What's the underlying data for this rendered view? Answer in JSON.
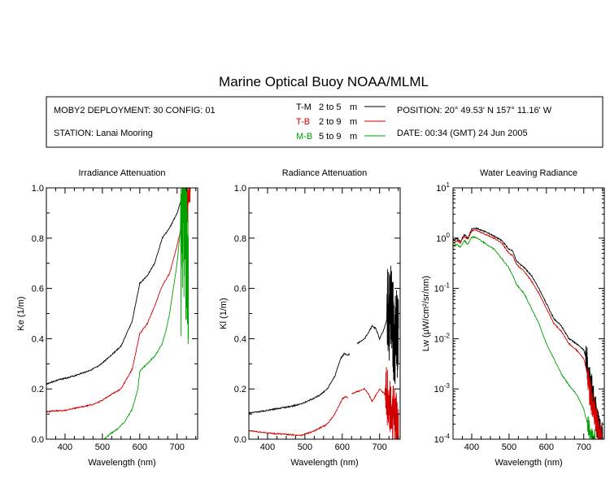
{
  "header": {
    "title": "Marine Optical Buoy NOAA/MLML",
    "deployment": "MOBY2 DEPLOYMENT: 30 CONFIG: 01",
    "station": "STATION: Lanai Mooring",
    "position": "POSITION: 20° 49.53' N   157° 11.16' W",
    "date": "DATE: 00:34 (GMT) 24 Jun 2005",
    "legend": [
      {
        "code": "T-M",
        "range": "2 to 5",
        "unit": "m",
        "color": "#000000"
      },
      {
        "code": "T-B",
        "range": "2 to 9",
        "unit": "m",
        "color": "#d00000"
      },
      {
        "code": "M-B",
        "range": "5 to 9",
        "unit": "m",
        "color": "#00a000"
      }
    ]
  },
  "chart_data": [
    {
      "type": "line",
      "title": "Irradiance Attenuation",
      "xlabel": "Wavelength (nm)",
      "ylabel": "Ke  (1/m)",
      "xlim": [
        350,
        755
      ],
      "ylim": [
        0,
        1.0
      ],
      "yscale": "linear",
      "xticks": [
        400,
        500,
        600,
        700
      ],
      "xtick_labels": [
        "400",
        "500",
        "600",
        "700"
      ],
      "yticks": [
        0,
        0.2,
        0.4,
        0.6,
        0.8,
        1.0
      ],
      "ytick_labels": [
        "0.0",
        "0.2",
        "0.4",
        "0.6",
        "0.8",
        "1.0"
      ],
      "series": [
        {
          "code": "T-M",
          "color": "#000000",
          "x": [
            350,
            380,
            420,
            460,
            490,
            505,
            520,
            550,
            580,
            600,
            620,
            640,
            660,
            680,
            700,
            715,
            720
          ],
          "y": [
            0.22,
            0.235,
            0.25,
            0.27,
            0.29,
            0.31,
            0.33,
            0.37,
            0.47,
            0.62,
            0.65,
            0.7,
            0.8,
            0.84,
            0.9,
            0.97,
            1.0
          ],
          "noise_from": 715,
          "noise_amp": 0.06
        },
        {
          "code": "T-B",
          "color": "#d00000",
          "x": [
            350,
            400,
            450,
            480,
            500,
            520,
            550,
            580,
            600,
            620,
            640,
            660,
            680,
            700,
            720,
            735
          ],
          "y": [
            0.11,
            0.115,
            0.13,
            0.14,
            0.155,
            0.175,
            0.2,
            0.28,
            0.42,
            0.46,
            0.53,
            0.61,
            0.66,
            0.77,
            0.9,
            1.0
          ],
          "noise_from": 720,
          "noise_amp": 0.12
        },
        {
          "code": "M-B",
          "color": "#00a000",
          "x": [
            505,
            520,
            540,
            560,
            580,
            595,
            600,
            620,
            640,
            660,
            670,
            680,
            690,
            700,
            710,
            720,
            730
          ],
          "y": [
            0.0,
            0.02,
            0.04,
            0.07,
            0.12,
            0.2,
            0.27,
            0.3,
            0.33,
            0.38,
            0.43,
            0.5,
            0.6,
            0.7,
            0.85,
            1.0,
            0.55
          ],
          "noise_from": 710,
          "noise_amp": 0.45
        }
      ]
    },
    {
      "type": "line",
      "title": "Radiance Attenuation",
      "xlabel": "Wavelength (nm)",
      "ylabel": "Kl  (1/m)",
      "xlim": [
        350,
        755
      ],
      "ylim": [
        0,
        1.0
      ],
      "yscale": "linear",
      "xticks": [
        400,
        500,
        600,
        700
      ],
      "xtick_labels": [
        "400",
        "500",
        "600",
        "700"
      ],
      "yticks": [
        0,
        0.2,
        0.4,
        0.6,
        0.8,
        1.0
      ],
      "ytick_labels": [
        "0.0",
        "0.2",
        "0.4",
        "0.6",
        "0.8",
        "1.0"
      ],
      "series": [
        {
          "code": "T-M",
          "color": "#000000",
          "x": [
            350,
            380,
            420,
            460,
            490,
            520,
            540,
            560,
            580,
            595,
            605,
            615,
            620
          ],
          "y": [
            0.105,
            0.11,
            0.12,
            0.13,
            0.14,
            0.16,
            0.175,
            0.2,
            0.25,
            0.32,
            0.34,
            0.335,
            0.34
          ],
          "noise_from": 900,
          "noise_amp": 0.0
        },
        {
          "code": "T-M",
          "color": "#000000",
          "x": [
            640,
            660,
            680,
            690,
            700,
            710,
            720,
            730,
            740,
            750
          ],
          "y": [
            0.38,
            0.4,
            0.45,
            0.44,
            0.4,
            0.43,
            0.48,
            0.5,
            0.4,
            0.45
          ],
          "noise_from": 720,
          "noise_amp": 0.2
        },
        {
          "code": "T-B",
          "color": "#d00000",
          "x": [
            350,
            380,
            420,
            460,
            490,
            520,
            560,
            580,
            600,
            610,
            615
          ],
          "y": [
            0.035,
            0.028,
            0.022,
            0.018,
            0.015,
            0.03,
            0.06,
            0.1,
            0.16,
            0.17,
            0.165
          ],
          "noise_from": 900,
          "noise_amp": 0.0
        },
        {
          "code": "T-B",
          "color": "#d00000",
          "x": [
            625,
            640,
            660,
            670,
            680,
            700,
            720,
            735,
            750
          ],
          "y": [
            0.18,
            0.19,
            0.2,
            0.18,
            0.15,
            0.2,
            0.17,
            0.1,
            0.05
          ],
          "noise_from": 715,
          "noise_amp": 0.12
        }
      ]
    },
    {
      "type": "line",
      "title": "Water Leaving Radiance",
      "xlabel": "Wavelength (nm)",
      "ylabel": "Lw  (µW/cm²/sr/nm)",
      "xlim": [
        350,
        755
      ],
      "ylim": [
        0.0001,
        10
      ],
      "yscale": "log",
      "xticks": [
        400,
        500,
        600,
        700
      ],
      "xtick_labels": [
        "400",
        "500",
        "600",
        "700"
      ],
      "yticks": [
        0.0001,
        0.001,
        0.01,
        0.1,
        1,
        10
      ],
      "ytick_labels": [
        [
          "10",
          "-4"
        ],
        [
          "10",
          "-3"
        ],
        [
          "10",
          "-2"
        ],
        [
          "10",
          "-1"
        ],
        [
          "10",
          "0"
        ],
        [
          "10",
          "1"
        ]
      ],
      "series": [
        {
          "code": "T-M",
          "color": "#000000",
          "x": [
            350,
            360,
            370,
            380,
            390,
            400,
            410,
            420,
            440,
            460,
            480,
            500,
            510,
            520,
            540,
            560,
            580,
            600,
            620,
            640,
            660,
            680,
            700,
            710,
            720,
            730,
            740,
            750
          ],
          "y": [
            0.9,
            1.0,
            0.85,
            1.2,
            1.0,
            1.5,
            1.6,
            1.5,
            1.3,
            1.1,
            0.9,
            0.6,
            0.55,
            0.35,
            0.26,
            0.18,
            0.1,
            0.05,
            0.025,
            0.018,
            0.01,
            0.008,
            0.006,
            0.003,
            0.001,
            0.0004,
            0.00015,
            0.0001
          ],
          "noise_from": 705,
          "noise_amp": 0.35
        },
        {
          "code": "T-B",
          "color": "#d00000",
          "x": [
            350,
            360,
            370,
            380,
            390,
            400,
            410,
            420,
            440,
            460,
            480,
            500,
            510,
            520,
            540,
            560,
            580,
            600,
            620,
            640,
            660,
            680,
            700,
            710,
            720,
            730,
            740,
            750
          ],
          "y": [
            0.8,
            0.9,
            0.8,
            1.1,
            0.95,
            1.4,
            1.45,
            1.35,
            1.15,
            1.0,
            0.8,
            0.5,
            0.45,
            0.3,
            0.22,
            0.14,
            0.08,
            0.04,
            0.02,
            0.014,
            0.008,
            0.006,
            0.004,
            0.002,
            0.0006,
            0.0003,
            0.00012,
            0.0001
          ],
          "noise_from": 710,
          "noise_amp": 0.35
        },
        {
          "code": "M-B",
          "color": "#00a000",
          "x": [
            350,
            360,
            370,
            380,
            390,
            400,
            410,
            420,
            440,
            460,
            480,
            500,
            510,
            520,
            540,
            560,
            580,
            600,
            620,
            640,
            660,
            680,
            700,
            710,
            720,
            725,
            730
          ],
          "y": [
            0.7,
            0.75,
            0.65,
            0.9,
            0.75,
            1.05,
            1.05,
            0.95,
            0.75,
            0.6,
            0.4,
            0.25,
            0.18,
            0.12,
            0.08,
            0.04,
            0.02,
            0.008,
            0.004,
            0.002,
            0.0012,
            0.0008,
            0.0004,
            0.0002,
            0.00012,
            0.0001,
            0.0001
          ],
          "noise_from": 710,
          "noise_amp": 0.2
        }
      ]
    }
  ]
}
